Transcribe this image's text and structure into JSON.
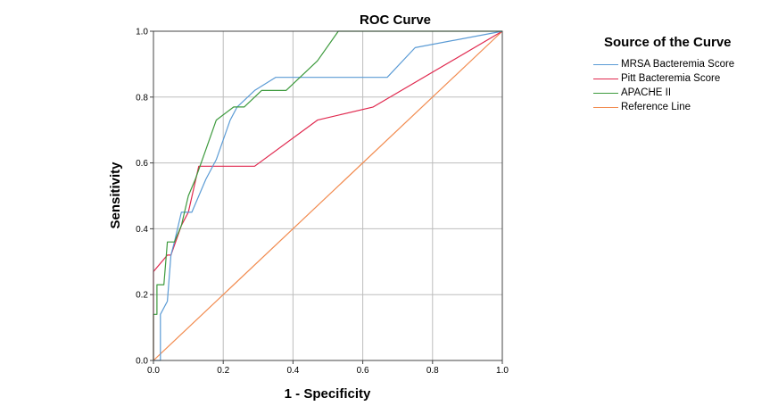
{
  "chart_data": {
    "type": "line",
    "title": "ROC Curve",
    "xlabel": "1 - Specificity",
    "ylabel": "Sensitivity",
    "xlim": [
      0,
      1
    ],
    "ylim": [
      0,
      1
    ],
    "xticks": [
      "0.0",
      "0.2",
      "0.4",
      "0.6",
      "0.8",
      "1.0"
    ],
    "yticks": [
      "0.0",
      "0.2",
      "0.4",
      "0.6",
      "0.8",
      "1.0"
    ],
    "grid": true,
    "legend": {
      "title": "Source of the Curve",
      "position": "right"
    },
    "series": [
      {
        "name": "MRSA Bacteremia Score",
        "color": "#5b9bd5",
        "points": [
          [
            0,
            0
          ],
          [
            0.02,
            0
          ],
          [
            0.02,
            0.14
          ],
          [
            0.04,
            0.18
          ],
          [
            0.05,
            0.32
          ],
          [
            0.06,
            0.36
          ],
          [
            0.08,
            0.45
          ],
          [
            0.11,
            0.45
          ],
          [
            0.15,
            0.55
          ],
          [
            0.18,
            0.61
          ],
          [
            0.22,
            0.73
          ],
          [
            0.24,
            0.77
          ],
          [
            0.29,
            0.82
          ],
          [
            0.35,
            0.86
          ],
          [
            0.4,
            0.86
          ],
          [
            0.67,
            0.86
          ],
          [
            0.75,
            0.95
          ],
          [
            1.0,
            1.0
          ]
        ]
      },
      {
        "name": "Pitt Bacteremia Score",
        "color": "#e0284e",
        "points": [
          [
            0,
            0
          ],
          [
            0,
            0.27
          ],
          [
            0.04,
            0.32
          ],
          [
            0.05,
            0.32
          ],
          [
            0.08,
            0.41
          ],
          [
            0.1,
            0.45
          ],
          [
            0.13,
            0.59
          ],
          [
            0.29,
            0.59
          ],
          [
            0.47,
            0.73
          ],
          [
            0.63,
            0.77
          ],
          [
            1.0,
            1.0
          ]
        ]
      },
      {
        "name": "APACHE II",
        "color": "#3d9a3d",
        "points": [
          [
            0,
            0
          ],
          [
            0,
            0.14
          ],
          [
            0.01,
            0.14
          ],
          [
            0.01,
            0.23
          ],
          [
            0.03,
            0.23
          ],
          [
            0.04,
            0.36
          ],
          [
            0.06,
            0.36
          ],
          [
            0.08,
            0.41
          ],
          [
            0.1,
            0.5
          ],
          [
            0.12,
            0.55
          ],
          [
            0.15,
            0.64
          ],
          [
            0.18,
            0.73
          ],
          [
            0.23,
            0.77
          ],
          [
            0.26,
            0.77
          ],
          [
            0.31,
            0.82
          ],
          [
            0.38,
            0.82
          ],
          [
            0.47,
            0.91
          ],
          [
            0.53,
            1.0
          ],
          [
            1.0,
            1.0
          ]
        ]
      },
      {
        "name": "Reference Line",
        "color": "#f28b4f",
        "points": [
          [
            0,
            0
          ],
          [
            1,
            1
          ]
        ]
      }
    ]
  }
}
